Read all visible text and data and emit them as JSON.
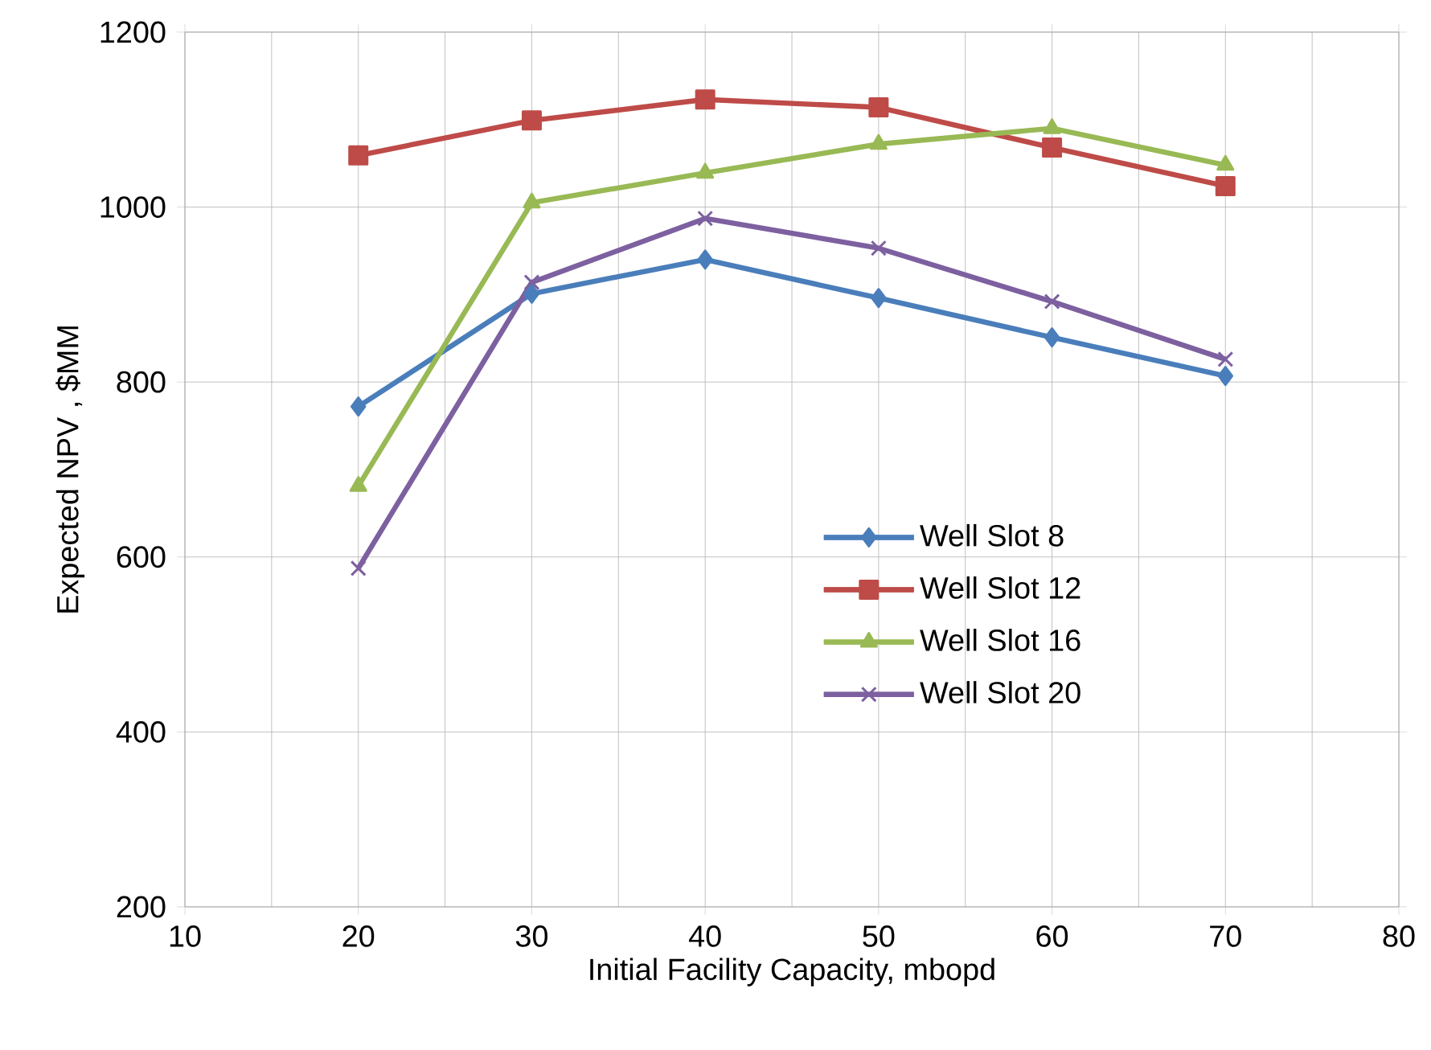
{
  "chart_data": {
    "type": "line",
    "xlabel": "Initial Facility Capacity,  mbopd",
    "ylabel": "Expected NPV , $MM",
    "x": [
      20,
      30,
      40,
      50,
      60,
      70
    ],
    "series": [
      {
        "name": "Well Slot 8",
        "color": "#4a7ebb",
        "marker": "diamond",
        "values": [
          772,
          901,
          940,
          896,
          851,
          807
        ]
      },
      {
        "name": "Well Slot 12",
        "color": "#be4b48",
        "marker": "square",
        "values": [
          1059,
          1099,
          1123,
          1114,
          1068,
          1024
        ]
      },
      {
        "name": "Well Slot 16",
        "color": "#98b954",
        "marker": "triangle",
        "values": [
          681,
          1005,
          1039,
          1072,
          1090,
          1048
        ]
      },
      {
        "name": "Well Slot 20",
        "color": "#7d60a0",
        "marker": "cross",
        "values": [
          587,
          914,
          987,
          953,
          892,
          826
        ]
      }
    ],
    "xlim": [
      10,
      80
    ],
    "xticks": [
      10,
      20,
      30,
      40,
      50,
      60,
      70,
      80
    ],
    "ylim": [
      200,
      1200
    ],
    "yticks": [
      200,
      400,
      600,
      800,
      1000,
      1200
    ],
    "grid": true,
    "legend": "right",
    "line_style": "solid"
  }
}
